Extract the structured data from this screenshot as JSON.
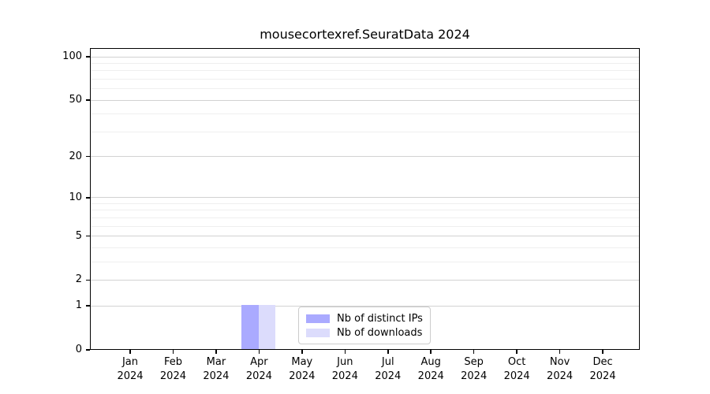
{
  "chart_data": {
    "type": "bar",
    "title": "mousecortexref.SeuratData 2024",
    "categories": [
      "Jan",
      "Feb",
      "Mar",
      "Apr",
      "May",
      "Jun",
      "Jul",
      "Aug",
      "Sep",
      "Oct",
      "Nov",
      "Dec"
    ],
    "year_label": "2024",
    "series": [
      {
        "name": "Nb of distinct IPs",
        "color": "#aaaaff",
        "values": [
          0,
          0,
          0,
          1,
          0,
          0,
          0,
          0,
          0,
          0,
          0,
          0
        ]
      },
      {
        "name": "Nb of downloads",
        "color": "#dcdcfc",
        "values": [
          0,
          0,
          0,
          1,
          0,
          0,
          0,
          0,
          0,
          0,
          0,
          0
        ]
      }
    ],
    "yticks": [
      0,
      1,
      2,
      5,
      10,
      20,
      50,
      100
    ],
    "minor_yticks": [
      3,
      4,
      6,
      7,
      8,
      9,
      30,
      40,
      60,
      70,
      80,
      90
    ],
    "y_scale": "log1p",
    "ylim": [
      0,
      115
    ],
    "grid": "horizontal",
    "legend_position": "lower center"
  },
  "colors": {
    "major_grid": "#d2d2d2",
    "minor_grid": "#efefef",
    "axis": "#000000",
    "legend_border": "#cccccc",
    "background": "#ffffff"
  }
}
